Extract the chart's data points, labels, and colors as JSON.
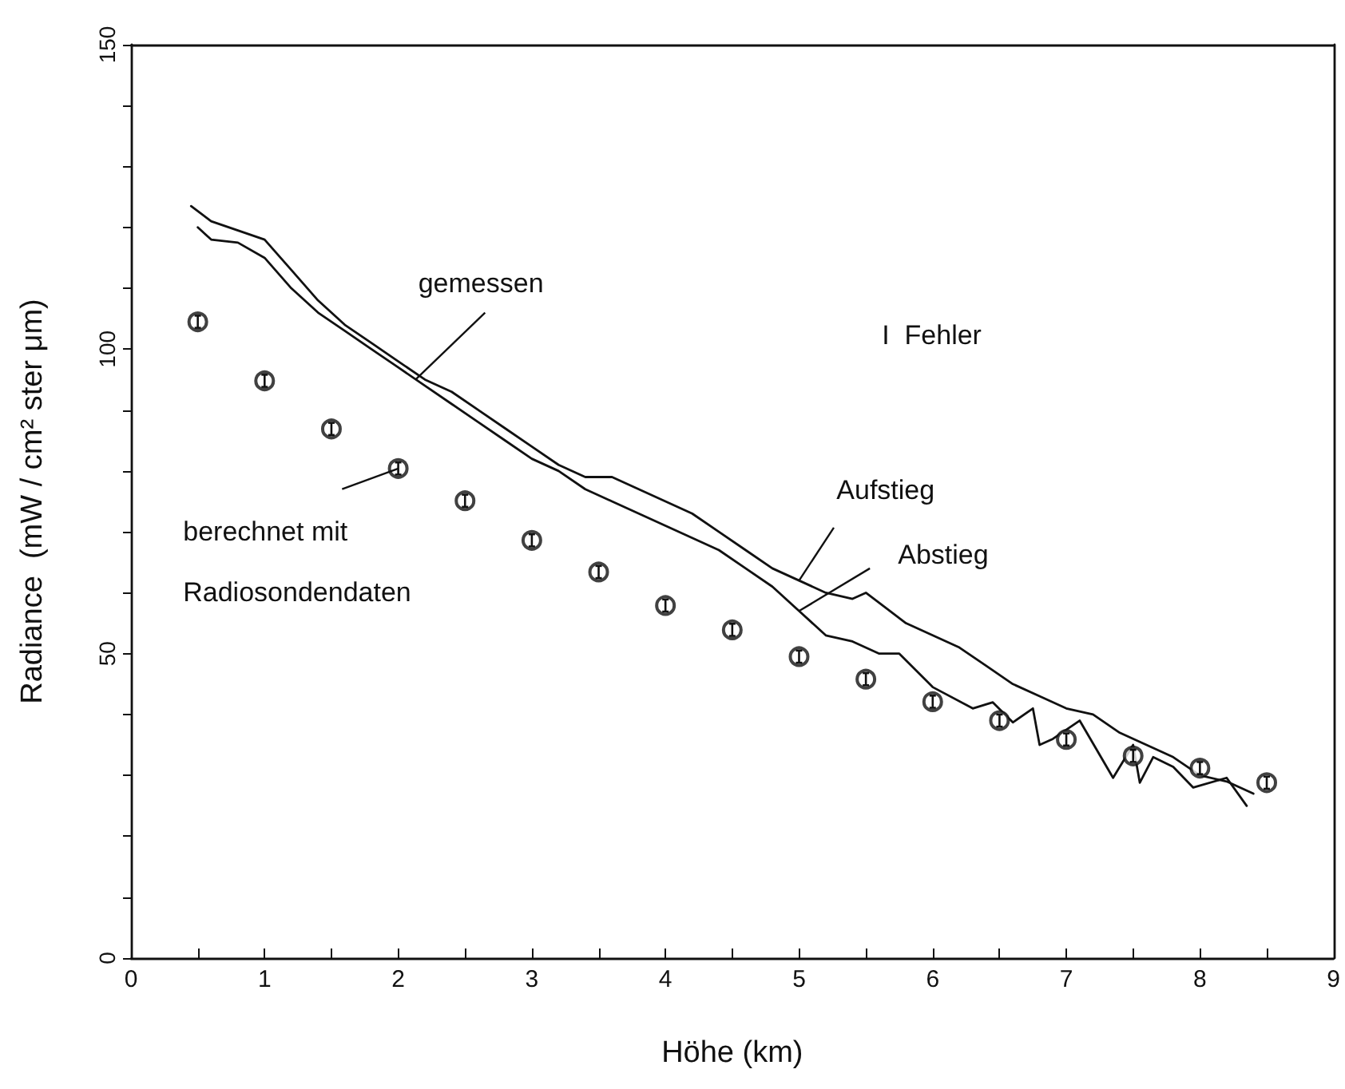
{
  "chart_data": {
    "type": "line",
    "xlabel": "Höhe (km)",
    "ylabel": "Radiance  (mW / cm² ster μm)",
    "xlim": [
      0,
      9
    ],
    "ylim": [
      0,
      150
    ],
    "xticks": [
      0,
      1,
      2,
      3,
      4,
      5,
      6,
      7,
      8,
      9,
      {
        "value": 0.5,
        "label": null
      },
      {
        "value": 1.5,
        "label": null
      },
      {
        "value": 2.5,
        "label": null
      },
      {
        "value": 3.5,
        "label": null
      },
      {
        "value": 4.5,
        "label": null
      },
      {
        "value": 5.5,
        "label": null
      },
      {
        "value": 6.5,
        "label": null
      },
      {
        "value": 7.5,
        "label": null
      },
      {
        "value": 8.5,
        "label": null
      }
    ],
    "yticks": [
      0,
      {
        "value": 10,
        "label": null
      },
      {
        "value": 20,
        "label": null
      },
      {
        "value": 30,
        "label": null
      },
      {
        "value": 40,
        "label": null
      },
      50,
      {
        "value": 60,
        "label": null
      },
      {
        "value": 70,
        "label": null
      },
      {
        "value": 80,
        "label": null
      },
      {
        "value": 90,
        "label": null
      },
      100,
      {
        "value": 110,
        "label": null
      },
      {
        "value": 120,
        "label": null
      },
      {
        "value": 130,
        "label": null
      },
      {
        "value": 140,
        "label": null
      },
      150
    ],
    "grid": false,
    "annotations": [
      {
        "text": "gemessen",
        "x": 2.13,
        "y": 95
      },
      "I  Fehler",
      {
        "text": "Aufstieg",
        "x": 5.0,
        "y": 62
      },
      {
        "text": "Abstieg",
        "x": 5.0,
        "y": 57
      },
      {
        "text": "berechnet mit Radiosondendaten",
        "x": 2.0,
        "y": 80.4
      }
    ],
    "series": [
      {
        "color": "#111111",
        "marker": "none",
        "line_style": "solid",
        "x": [
          0.45,
          0.6,
          0.8,
          1.0,
          1.2,
          1.4,
          1.6,
          1.8,
          2.0,
          2.2,
          2.4,
          2.6,
          2.8,
          3.0,
          3.2,
          3.4,
          3.6,
          3.8,
          4.0,
          4.2,
          4.4,
          4.6,
          4.8,
          5.0,
          5.2,
          5.4,
          5.5,
          5.8,
          6.0,
          6.2,
          6.4,
          6.6,
          6.8,
          7.0,
          7.2,
          7.4,
          7.6,
          7.8,
          8.0,
          8.2,
          8.4
        ],
        "values": [
          123.5,
          121,
          119.5,
          118,
          113,
          108,
          104,
          101,
          98,
          95,
          93,
          90,
          87,
          84,
          81,
          79,
          79,
          77,
          75,
          73,
          70,
          67,
          64,
          62,
          60,
          59,
          60,
          55,
          53,
          51,
          48,
          45,
          43,
          41,
          40,
          37,
          35,
          33,
          30,
          29,
          27
        ]
      },
      {
        "color": "#111111",
        "marker": "none",
        "line_style": "solid",
        "x": [
          0.5,
          0.6,
          0.8,
          1.0,
          1.2,
          1.4,
          1.6,
          1.8,
          2.0,
          2.2,
          2.4,
          2.6,
          2.8,
          3.0,
          3.2,
          3.4,
          3.6,
          3.8,
          4.0,
          4.2,
          4.4,
          4.6,
          4.8,
          5.0,
          5.2,
          5.4,
          5.6,
          5.75,
          6.0,
          6.3,
          6.45,
          6.6,
          6.75,
          6.8,
          6.9,
          7.1,
          7.35,
          7.5,
          7.55,
          7.65,
          7.8,
          7.95,
          8.2,
          8.35
        ],
        "values": [
          120,
          118,
          117.5,
          115,
          110,
          106,
          103,
          100,
          97,
          94,
          91,
          88,
          85,
          82,
          80,
          77,
          75,
          73,
          71,
          69,
          67,
          64,
          61,
          57,
          53,
          52,
          50,
          50,
          44.5,
          41,
          42,
          38.7,
          41,
          35,
          36,
          39,
          29.6,
          35,
          28.8,
          33,
          31.4,
          28,
          29.6,
          25
        ]
      },
      {
        "type": "scatter",
        "color": "#111111",
        "marker": "circle",
        "x": [
          0.5,
          1.0,
          1.5,
          2.0,
          2.5,
          3.0,
          3.5,
          4.0,
          4.5,
          5.0,
          5.5,
          6.0,
          6.5,
          7.0,
          7.5,
          8.0,
          8.5
        ],
        "values": [
          104.5,
          94.8,
          86.9,
          80.4,
          75.1,
          68.6,
          63.4,
          57.9,
          53.9,
          49.5,
          45.8,
          42.1,
          39.0,
          35.9,
          33.2,
          31.2,
          28.8
        ],
        "errors": [
          1,
          1,
          1,
          1,
          1,
          1,
          1,
          1,
          1,
          1,
          1,
          1,
          1,
          1,
          1,
          1,
          1
        ]
      }
    ]
  }
}
